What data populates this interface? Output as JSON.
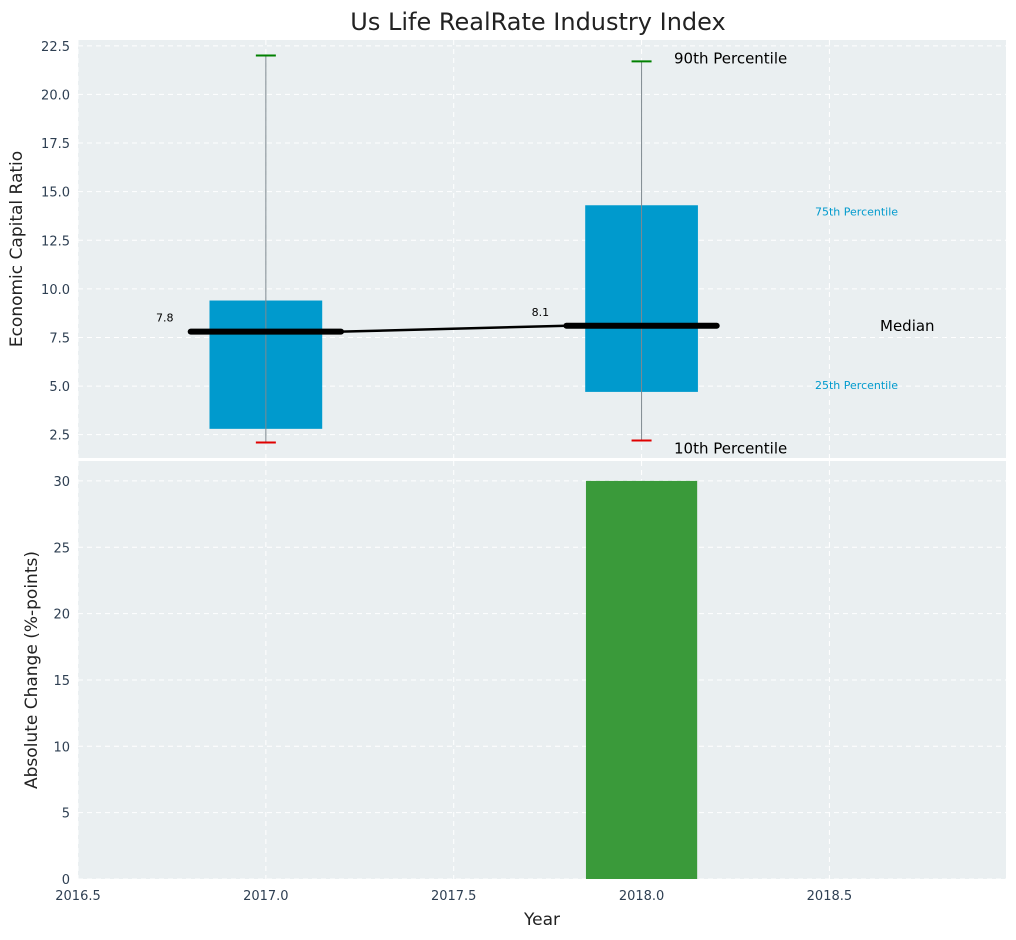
{
  "chart_data": [
    {
      "type": "box",
      "title": "Us Life RealRate Industry Index",
      "ylabel": "Economic Capital Ratio",
      "xlim": [
        2016.5,
        2018.97
      ],
      "ylim": [
        1.3,
        22.8
      ],
      "yticks": [
        "2.5",
        "5.0",
        "7.5",
        "10.0",
        "12.5",
        "15.0",
        "17.5",
        "20.0",
        "22.5"
      ],
      "grid": true,
      "boxes": [
        {
          "year": 2017,
          "p10": 2.1,
          "p25": 2.8,
          "median": 7.8,
          "p75": 9.4,
          "p90": 22.0,
          "median_label": "7.8"
        },
        {
          "year": 2018,
          "p10": 2.2,
          "p25": 4.7,
          "median": 8.1,
          "p75": 14.3,
          "p90": 21.7,
          "median_label": "8.1"
        }
      ],
      "annotations": {
        "p90": "90th Percentile",
        "p75": "75th Percentile",
        "median": "Median",
        "p25": "25th Percentile",
        "p10": "10th Percentile"
      },
      "colors": {
        "box": "#009acd",
        "median": "#000000",
        "p90_cap": "#008000",
        "p10_cap": "#e00000",
        "annot_small": "#009acd",
        "panel_bg": "#eaeff1"
      }
    },
    {
      "type": "bar",
      "xlabel": "Year",
      "ylabel": "Absolute Change (%-points)",
      "xlim": [
        2016.5,
        2018.97
      ],
      "ylim": [
        0,
        31.5
      ],
      "xticks": [
        "2016.5",
        "2017.0",
        "2017.5",
        "2018.0",
        "2018.5"
      ],
      "yticks": [
        "0",
        "5",
        "10",
        "15",
        "20",
        "25",
        "30"
      ],
      "grid": true,
      "bars": [
        {
          "x": 2018,
          "value": 30
        }
      ],
      "colors": {
        "bar": "#3a9a3a"
      }
    }
  ]
}
